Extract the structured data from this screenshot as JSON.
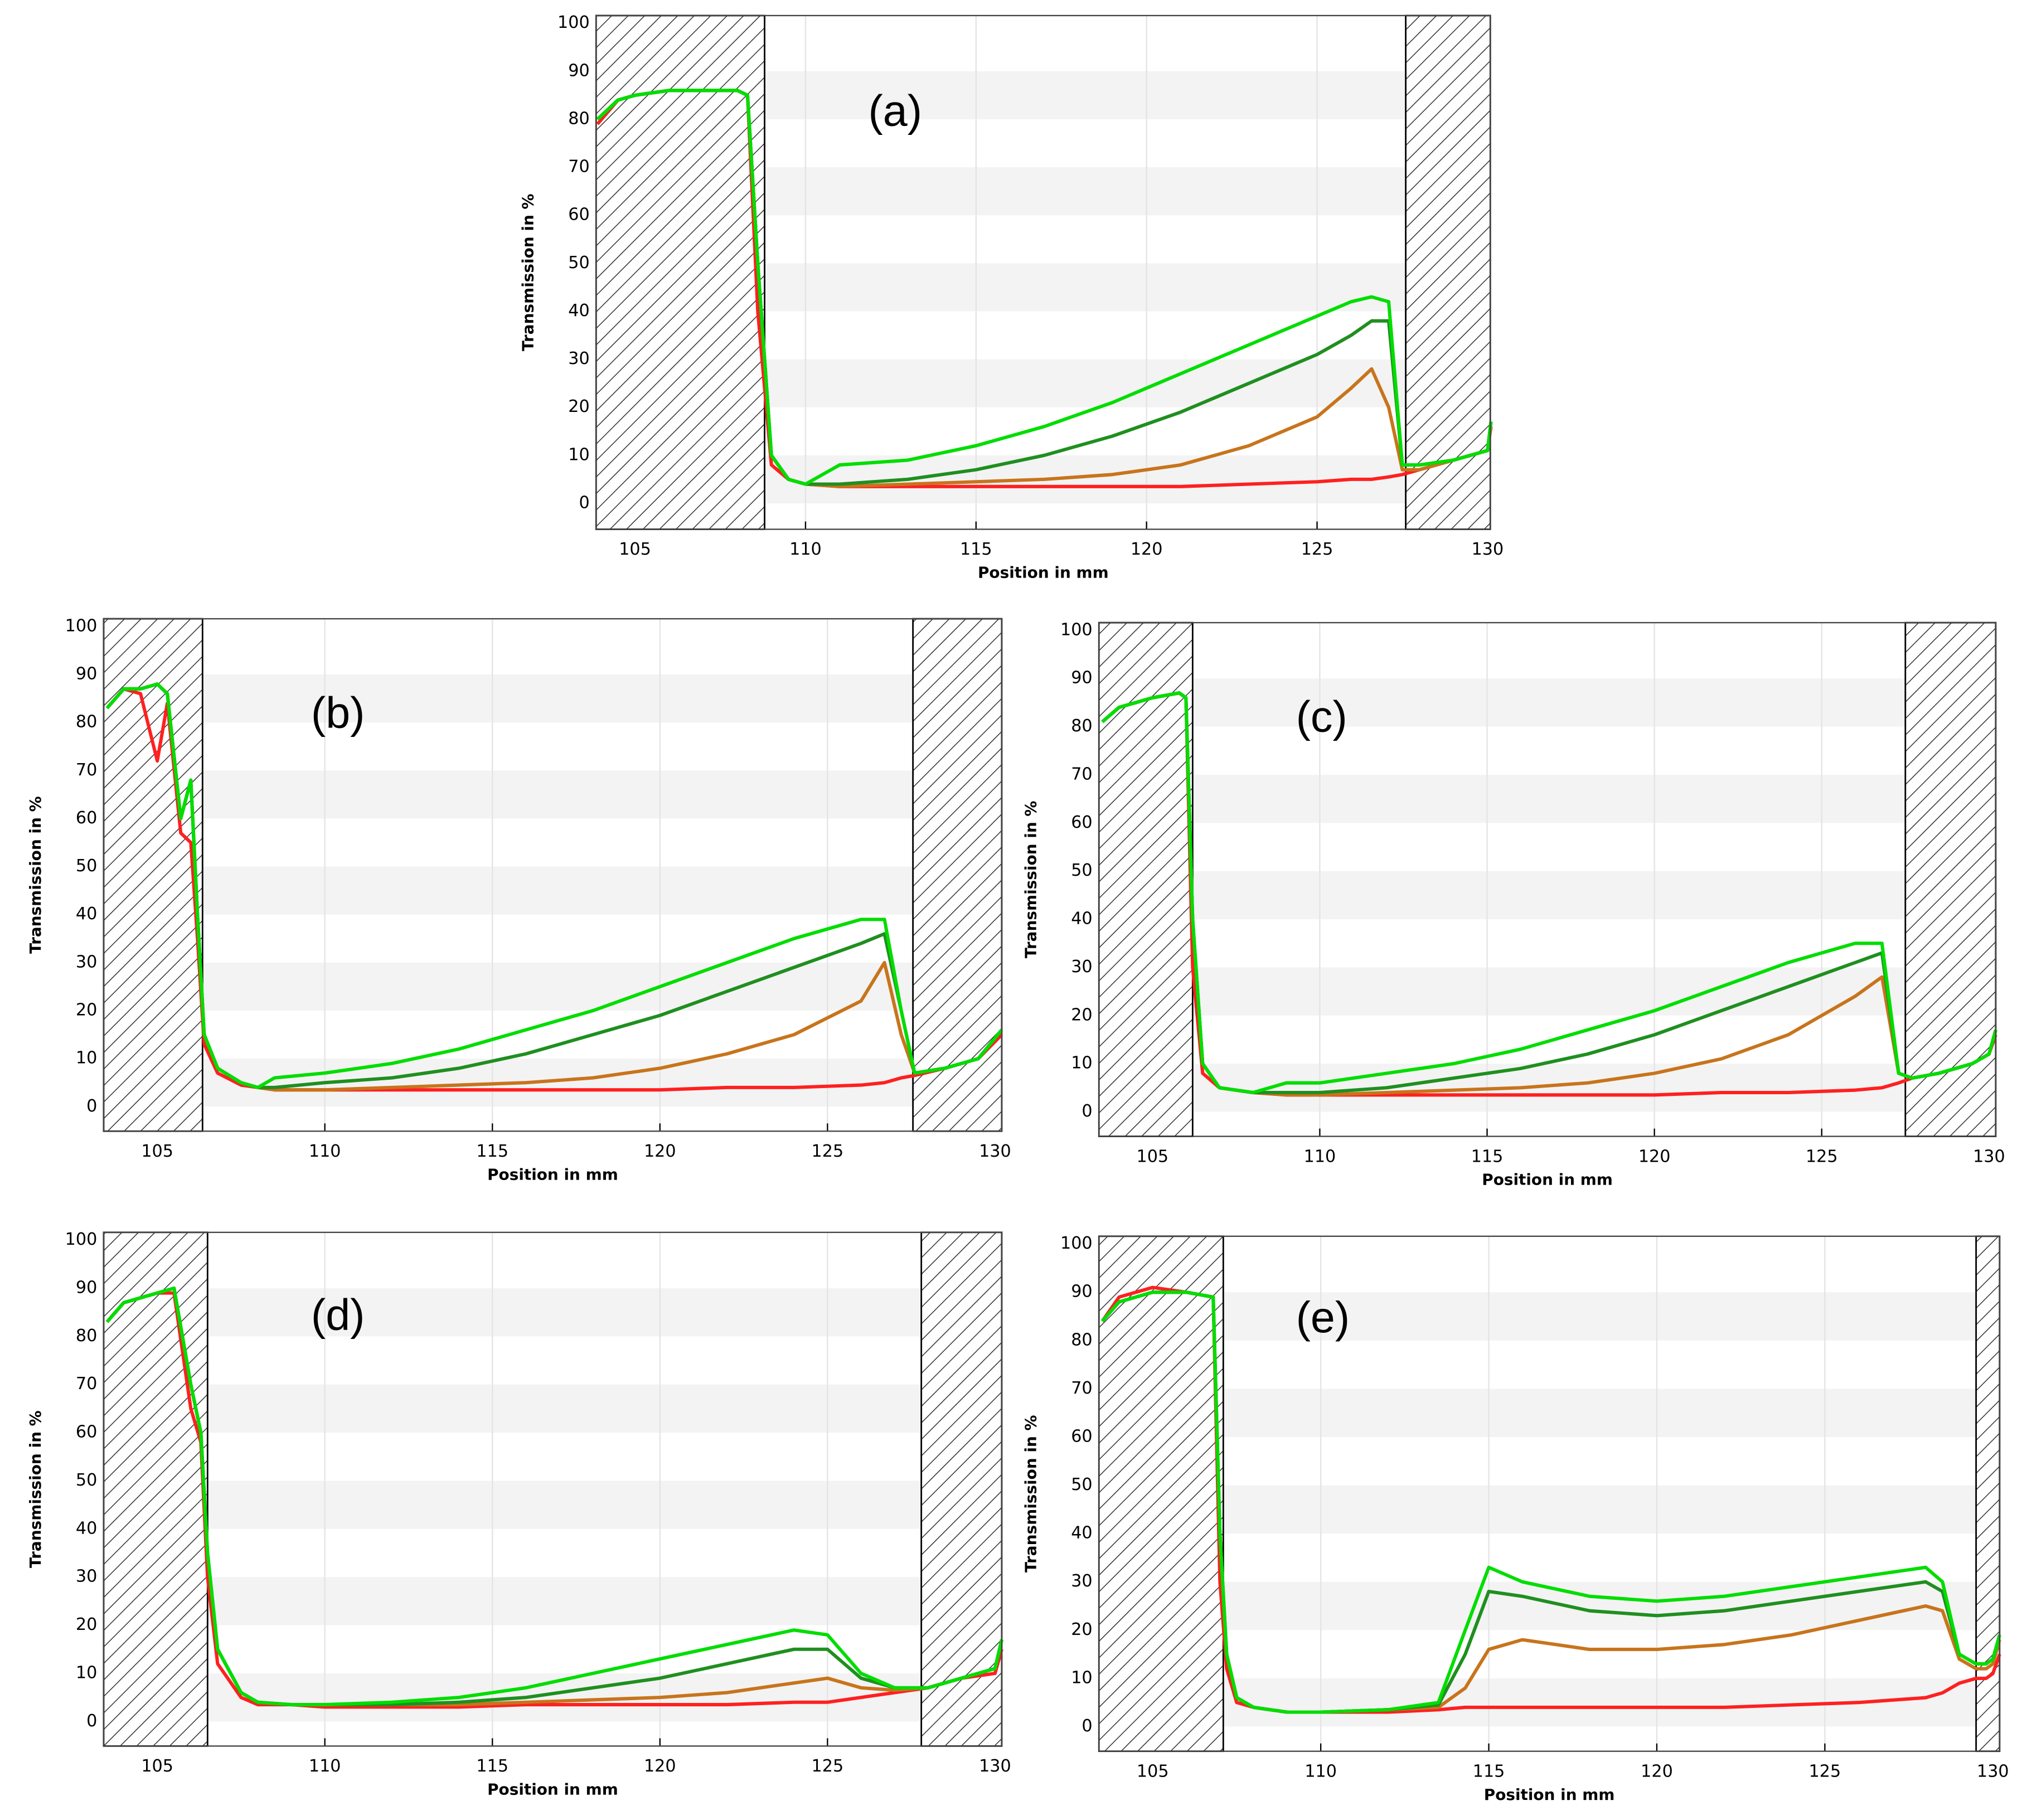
{
  "chart_data": [
    {
      "type": "line",
      "panel_label": "(a)",
      "x_label": "Position in mm",
      "y_label": "Transmission in %",
      "xlim": [
        103.86,
        130.08
      ],
      "ylim": [
        -5.4,
        101.6
      ],
      "xticks": [
        105,
        110,
        115,
        120,
        125,
        130
      ],
      "yticks": [
        0,
        10,
        20,
        30,
        40,
        50,
        60,
        70,
        80,
        90,
        100
      ],
      "grid": true,
      "bands": true,
      "shaded_regions": [
        [
          103.86,
          108.8
        ],
        [
          127.6,
          130.08
        ]
      ],
      "x": [
        103.9,
        104.5,
        105,
        106,
        107,
        108,
        108.3,
        108.6,
        109,
        109.5,
        110,
        111,
        113,
        115,
        117,
        119,
        121,
        123,
        125,
        126,
        126.6,
        127.1,
        127.5,
        128,
        129,
        130,
        130.1
      ],
      "series": [
        {
          "color": "#ff2020",
          "values": [
            79,
            84,
            85,
            86,
            86,
            86,
            85,
            40,
            8,
            5,
            4,
            3.5,
            3.5,
            3.5,
            3.5,
            3.5,
            3.5,
            4,
            4.5,
            5,
            5,
            5.5,
            6,
            7,
            9,
            11,
            16
          ]
        },
        {
          "color": "#c8741c",
          "values": [
            80,
            84,
            85,
            86,
            86,
            86,
            85,
            50,
            10,
            5,
            4,
            3.5,
            4,
            4.5,
            5,
            6,
            8,
            12,
            18,
            24,
            28,
            20,
            7,
            7,
            9,
            11,
            17
          ]
        },
        {
          "color": "#1f8f1f",
          "values": [
            80,
            84,
            85,
            86,
            86,
            86,
            85,
            50,
            10,
            5,
            4,
            4,
            5,
            7,
            10,
            14,
            19,
            25,
            31,
            35,
            38,
            38,
            8,
            8,
            9,
            11,
            17
          ]
        },
        {
          "color": "#00dd00",
          "values": [
            80,
            84,
            85,
            86,
            86,
            86,
            85,
            50,
            10,
            5,
            4,
            8,
            9,
            12,
            16,
            21,
            27,
            33,
            39,
            42,
            43,
            42,
            8,
            8,
            9,
            11,
            17
          ]
        }
      ]
    },
    {
      "type": "line",
      "panel_label": "(b)",
      "x_label": "Position in mm",
      "y_label": "Transmission in %",
      "xlim": [
        103.4,
        130.2
      ],
      "ylim": [
        -5.1,
        101.6
      ],
      "xticks": [
        105,
        110,
        115,
        120,
        125,
        130
      ],
      "yticks": [
        0,
        10,
        20,
        30,
        40,
        50,
        60,
        70,
        80,
        90,
        100
      ],
      "grid": true,
      "bands": true,
      "shaded_regions": [
        [
          103.4,
          106.35
        ],
        [
          127.55,
          130.2
        ]
      ],
      "x": [
        103.5,
        104,
        104.5,
        105,
        105.3,
        105.7,
        106,
        106.2,
        106.4,
        106.8,
        107.5,
        108,
        108.5,
        110,
        112,
        114,
        116,
        118,
        120,
        122,
        124,
        126,
        126.7,
        127.2,
        127.6,
        128.5,
        129.5,
        130.2
      ],
      "series": [
        {
          "color": "#ff2020",
          "values": [
            83,
            87,
            86,
            72,
            84,
            57,
            55,
            35,
            13,
            7,
            4.5,
            4,
            3.5,
            3.5,
            3.5,
            3.5,
            3.5,
            3.5,
            3.5,
            4,
            4,
            4.5,
            5,
            6,
            6.5,
            8,
            10,
            15
          ]
        },
        {
          "color": "#c8741c",
          "values": [
            83,
            87,
            87,
            88,
            86,
            60,
            68,
            40,
            15,
            8,
            5,
            4,
            3.5,
            3.5,
            4,
            4.5,
            5,
            6,
            8,
            11,
            15,
            22,
            30,
            15,
            7,
            8,
            10,
            16
          ]
        },
        {
          "color": "#1f8f1f",
          "values": [
            83,
            87,
            87,
            88,
            86,
            60,
            68,
            40,
            15,
            8,
            5,
            4,
            4,
            5,
            6,
            8,
            11,
            15,
            19,
            24,
            29,
            34,
            36,
            20,
            7,
            8,
            10,
            16
          ]
        },
        {
          "color": "#00dd00",
          "values": [
            83,
            87,
            87,
            88,
            86,
            60,
            68,
            40,
            15,
            8,
            5,
            4,
            6,
            7,
            9,
            12,
            16,
            20,
            25,
            30,
            35,
            39,
            39,
            20,
            7,
            8,
            10,
            16
          ]
        }
      ]
    },
    {
      "type": "line",
      "panel_label": "(c)",
      "x_label": "Position in mm",
      "y_label": "Transmission in %",
      "xlim": [
        103.4,
        130.2
      ],
      "ylim": [
        -5.1,
        101.6
      ],
      "xticks": [
        105,
        110,
        115,
        120,
        125,
        130
      ],
      "yticks": [
        0,
        10,
        20,
        30,
        40,
        50,
        60,
        70,
        80,
        90,
        100
      ],
      "grid": true,
      "bands": true,
      "shaded_regions": [
        [
          103.4,
          106.2
        ],
        [
          127.5,
          130.2
        ]
      ],
      "x": [
        103.5,
        104,
        105,
        105.8,
        106,
        106.2,
        106.5,
        107,
        108,
        109,
        110,
        112,
        114,
        116,
        118,
        120,
        122,
        124,
        126,
        126.8,
        127.3,
        127.7,
        128.5,
        129.5,
        130,
        130.2
      ],
      "series": [
        {
          "color": "#ff2020",
          "values": [
            81,
            84,
            86,
            87,
            86,
            30,
            8,
            5,
            4,
            3.5,
            3.5,
            3.5,
            3.5,
            3.5,
            3.5,
            3.5,
            4,
            4,
            4.5,
            5,
            6,
            7,
            8,
            10,
            12,
            16
          ]
        },
        {
          "color": "#c8741c",
          "values": [
            81,
            84,
            86,
            87,
            86,
            40,
            10,
            5,
            4,
            3.5,
            3.5,
            4,
            4.5,
            5,
            6,
            8,
            11,
            16,
            24,
            28,
            8,
            7,
            8,
            10,
            12,
            17
          ]
        },
        {
          "color": "#1f8f1f",
          "values": [
            81,
            84,
            86,
            87,
            86,
            40,
            10,
            5,
            4,
            4,
            4,
            5,
            7,
            9,
            12,
            16,
            21,
            26,
            31,
            33,
            8,
            7,
            8,
            10,
            12,
            17
          ]
        },
        {
          "color": "#00dd00",
          "values": [
            81,
            84,
            86,
            87,
            86,
            40,
            10,
            5,
            4,
            6,
            6,
            8,
            10,
            13,
            17,
            21,
            26,
            31,
            35,
            35,
            8,
            7,
            8,
            10,
            12,
            17
          ]
        }
      ]
    },
    {
      "type": "line",
      "panel_label": "(d)",
      "x_label": "Position in mm",
      "y_label": "Transmission in %",
      "xlim": [
        103.4,
        130.2
      ],
      "ylim": [
        -5.1,
        101.6
      ],
      "xticks": [
        105,
        110,
        115,
        120,
        125,
        130
      ],
      "yticks": [
        0,
        10,
        20,
        30,
        40,
        50,
        60,
        70,
        80,
        90,
        100
      ],
      "grid": true,
      "bands": true,
      "shaded_regions": [
        [
          103.4,
          106.5
        ],
        [
          127.8,
          130.2
        ]
      ],
      "x": [
        103.5,
        104,
        105,
        105.5,
        106,
        106.3,
        106.5,
        106.8,
        107.5,
        108,
        109,
        110,
        112,
        114,
        116,
        118,
        120,
        122,
        124,
        125,
        126,
        127,
        128,
        129,
        130,
        130.2
      ],
      "series": [
        {
          "color": "#ff2020",
          "values": [
            83,
            87,
            89,
            89,
            65,
            58,
            30,
            12,
            5,
            3.5,
            3.5,
            3,
            3,
            3,
            3.5,
            3.5,
            3.5,
            3.5,
            4,
            4,
            5,
            6,
            7,
            9,
            10,
            15
          ]
        },
        {
          "color": "#c8741c",
          "values": [
            83,
            87,
            89,
            90,
            70,
            60,
            35,
            15,
            6,
            4,
            3.5,
            3.5,
            3.5,
            3.5,
            4,
            4.5,
            5,
            6,
            8,
            9,
            7,
            6.5,
            7,
            9,
            11,
            17
          ]
        },
        {
          "color": "#1f8f1f",
          "values": [
            83,
            87,
            89,
            90,
            70,
            60,
            35,
            15,
            6,
            4,
            3.5,
            3.5,
            3.5,
            4,
            5,
            7,
            9,
            12,
            15,
            15,
            9,
            7,
            7,
            9,
            11,
            17
          ]
        },
        {
          "color": "#00dd00",
          "values": [
            83,
            87,
            89,
            90,
            70,
            60,
            35,
            15,
            6,
            4,
            3.5,
            3.5,
            4,
            5,
            7,
            10,
            13,
            16,
            19,
            18,
            10,
            7,
            7,
            9,
            11,
            17
          ]
        }
      ]
    },
    {
      "type": "line",
      "panel_label": "(e)",
      "x_label": "Position in mm",
      "y_label": "Transmission in %",
      "xlim": [
        103.4,
        130.2
      ],
      "ylim": [
        -5.1,
        101.6
      ],
      "xticks": [
        105,
        110,
        115,
        120,
        125,
        130
      ],
      "yticks": [
        0,
        10,
        20,
        30,
        40,
        50,
        60,
        70,
        80,
        90,
        100
      ],
      "grid": true,
      "bands": true,
      "shaded_regions": [
        [
          103.4,
          107.1
        ],
        [
          129.5,
          130.2
        ]
      ],
      "x": [
        103.5,
        104,
        105,
        106,
        106.8,
        107,
        107.2,
        107.5,
        108,
        109,
        110,
        112,
        113.5,
        114.3,
        115,
        116,
        118,
        120,
        122,
        124,
        126,
        128,
        128.5,
        129,
        129.5,
        129.8,
        130,
        130.2
      ],
      "series": [
        {
          "color": "#ff2020",
          "values": [
            84,
            89,
            91,
            90,
            89,
            30,
            12,
            5,
            4,
            3,
            3,
            3,
            3.5,
            4,
            4,
            4,
            4,
            4,
            4,
            4.5,
            5,
            6,
            7,
            9,
            10,
            10,
            11,
            15
          ]
        },
        {
          "color": "#c8741c",
          "values": [
            84,
            88,
            90,
            90,
            89,
            40,
            15,
            6,
            4,
            3,
            3,
            3.5,
            4,
            8,
            16,
            18,
            16,
            16,
            17,
            19,
            22,
            25,
            24,
            14,
            12,
            12,
            13,
            18
          ]
        },
        {
          "color": "#1f8f1f",
          "values": [
            84,
            88,
            90,
            90,
            89,
            40,
            15,
            6,
            4,
            3,
            3,
            3.5,
            4.5,
            15,
            28,
            27,
            24,
            23,
            24,
            26,
            28,
            30,
            28,
            15,
            13,
            13,
            14,
            19
          ]
        },
        {
          "color": "#00dd00",
          "values": [
            84,
            88,
            90,
            90,
            89,
            40,
            15,
            6,
            4,
            3,
            3,
            3.5,
            5,
            20,
            33,
            30,
            27,
            26,
            27,
            29,
            31,
            33,
            30,
            15,
            13,
            13,
            14,
            19
          ]
        }
      ]
    }
  ]
}
